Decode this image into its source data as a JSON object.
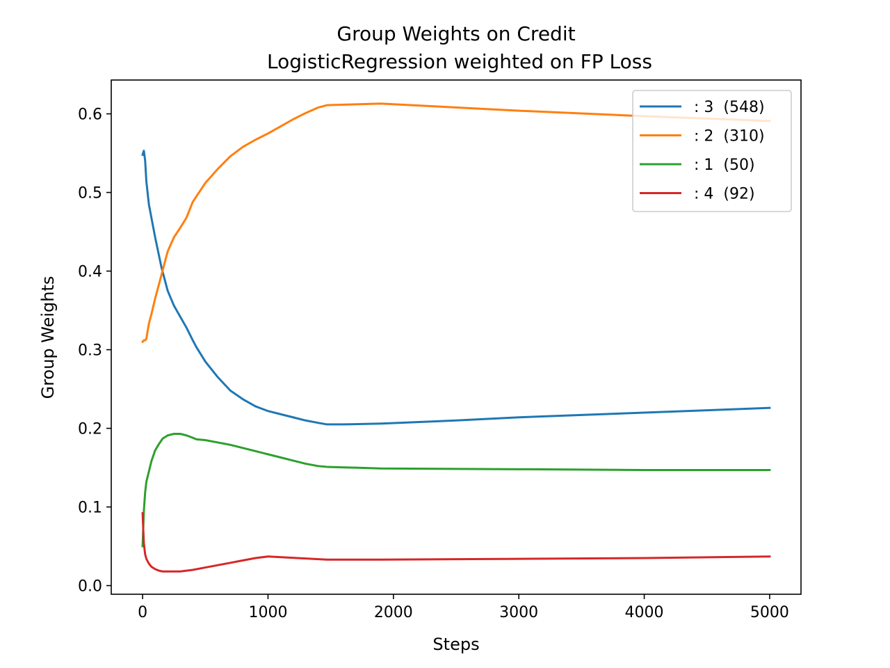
{
  "chart_data": {
    "type": "line",
    "title": "Group Weights on Credit",
    "subtitle": "LogisticRegression weighted on FP Loss",
    "xlabel": "Steps",
    "ylabel": "Group Weights",
    "xlim": [
      -250,
      5250
    ],
    "ylim": [
      -0.011,
      0.643
    ],
    "xticks": [
      0,
      1000,
      2000,
      3000,
      4000,
      5000
    ],
    "yticks": [
      0.0,
      0.1,
      0.2,
      0.3,
      0.4,
      0.5,
      0.6
    ],
    "xtick_labels": [
      "0",
      "1000",
      "2000",
      "3000",
      "4000",
      "5000"
    ],
    "ytick_labels": [
      "0.0",
      "0.1",
      "0.2",
      "0.3",
      "0.4",
      "0.5",
      "0.6"
    ],
    "grid": false,
    "legend_position": "top-right",
    "series": [
      {
        "name": ": 3  (548)",
        "color": "#1f77b4",
        "x": [
          0,
          10,
          20,
          30,
          50,
          70,
          100,
          150,
          200,
          250,
          300,
          350,
          400,
          430,
          500,
          600,
          700,
          800,
          900,
          1000,
          1100,
          1200,
          1300,
          1400,
          1470,
          1600,
          1900,
          2500,
          3000,
          3500,
          4000,
          4500,
          5000
        ],
        "values": [
          0.548,
          0.553,
          0.541,
          0.514,
          0.485,
          0.468,
          0.443,
          0.405,
          0.375,
          0.356,
          0.342,
          0.328,
          0.312,
          0.303,
          0.285,
          0.265,
          0.248,
          0.237,
          0.228,
          0.222,
          0.218,
          0.214,
          0.21,
          0.207,
          0.205,
          0.205,
          0.206,
          0.21,
          0.214,
          0.217,
          0.22,
          0.223,
          0.226
        ]
      },
      {
        "name": ": 2  (310)",
        "color": "#ff7f0e",
        "x": [
          0,
          10,
          20,
          30,
          50,
          70,
          100,
          150,
          200,
          250,
          300,
          350,
          400,
          450,
          500,
          600,
          700,
          800,
          900,
          1000,
          1100,
          1200,
          1300,
          1400,
          1470,
          1900,
          3000,
          4000,
          5000
        ],
        "values": [
          0.31,
          0.312,
          0.312,
          0.314,
          0.333,
          0.345,
          0.365,
          0.395,
          0.425,
          0.443,
          0.455,
          0.468,
          0.488,
          0.5,
          0.512,
          0.53,
          0.546,
          0.558,
          0.567,
          0.575,
          0.584,
          0.593,
          0.601,
          0.608,
          0.611,
          0.613,
          0.604,
          0.597,
          0.591
        ]
      },
      {
        "name": ": 1  (50)",
        "color": "#2ca02c",
        "x": [
          0,
          10,
          20,
          30,
          50,
          70,
          100,
          130,
          160,
          200,
          250,
          300,
          350,
          400,
          430,
          500,
          600,
          700,
          800,
          900,
          1000,
          1100,
          1200,
          1300,
          1400,
          1470,
          1900,
          3000,
          4000,
          5000
        ],
        "values": [
          0.05,
          0.095,
          0.118,
          0.132,
          0.145,
          0.158,
          0.172,
          0.18,
          0.187,
          0.191,
          0.193,
          0.193,
          0.191,
          0.188,
          0.186,
          0.185,
          0.182,
          0.179,
          0.175,
          0.171,
          0.167,
          0.163,
          0.159,
          0.155,
          0.152,
          0.151,
          0.149,
          0.148,
          0.147,
          0.147
        ]
      },
      {
        "name": ": 4  (92)",
        "color": "#d62728",
        "x": [
          0,
          10,
          20,
          30,
          50,
          70,
          100,
          130,
          160,
          200,
          250,
          300,
          350,
          400,
          500,
          600,
          700,
          800,
          900,
          1000,
          1470,
          1900,
          3000,
          4000,
          5000
        ],
        "values": [
          0.092,
          0.054,
          0.04,
          0.034,
          0.028,
          0.024,
          0.021,
          0.019,
          0.018,
          0.018,
          0.018,
          0.018,
          0.019,
          0.02,
          0.023,
          0.026,
          0.029,
          0.032,
          0.035,
          0.037,
          0.033,
          0.033,
          0.034,
          0.035,
          0.037
        ]
      }
    ]
  }
}
